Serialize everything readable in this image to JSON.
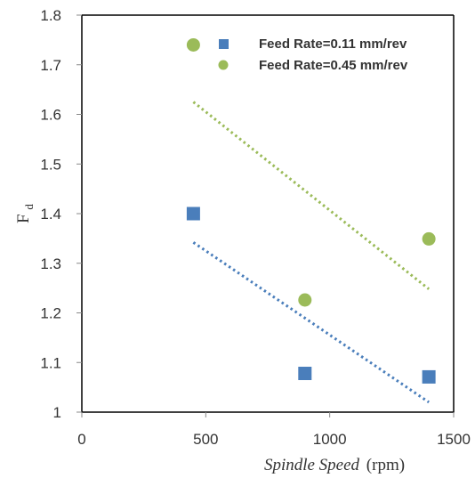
{
  "chart_data": {
    "type": "scatter",
    "title": "",
    "xlabel": "Spindle Speed (rpm)",
    "xlabel_italic_part": "Spindle Speed",
    "xlabel_unit_part": "(rpm)",
    "ylabel": "Fd",
    "ylabel_main": "F",
    "ylabel_sub": "d",
    "xlim": [
      0,
      1500
    ],
    "ylim": [
      1,
      1.8
    ],
    "x_ticks": [
      0,
      500,
      1000,
      1500
    ],
    "x_tick_labels": [
      "0",
      "500",
      "1000",
      "1500"
    ],
    "y_ticks": [
      1,
      1.1,
      1.2,
      1.3,
      1.4,
      1.5,
      1.6,
      1.7,
      1.8
    ],
    "y_tick_labels": [
      "1",
      "1.1",
      "1.2",
      "1.3",
      "1.4",
      "1.5",
      "1.6",
      "1.7",
      "1.8"
    ],
    "grid": false,
    "legend_position": "top-right",
    "series": [
      {
        "name": "Feed Rate=0.11 mm/rev",
        "marker": "square",
        "color": "#4a7ebb",
        "x": [
          450,
          900,
          1400
        ],
        "y": [
          1.4,
          1.078,
          1.071
        ],
        "trendline": {
          "type": "linear",
          "x": [
            450,
            1400
          ],
          "y": [
            1.342,
            1.02
          ]
        }
      },
      {
        "name": "Feed Rate=0.45  mm/rev",
        "marker": "circle",
        "color": "#9bbb59",
        "x": [
          450,
          900,
          1400
        ],
        "y": [
          1.74,
          1.226,
          1.349
        ],
        "trendline": {
          "type": "linear",
          "x": [
            450,
            1400
          ],
          "y": [
            1.625,
            1.248
          ]
        }
      }
    ]
  }
}
